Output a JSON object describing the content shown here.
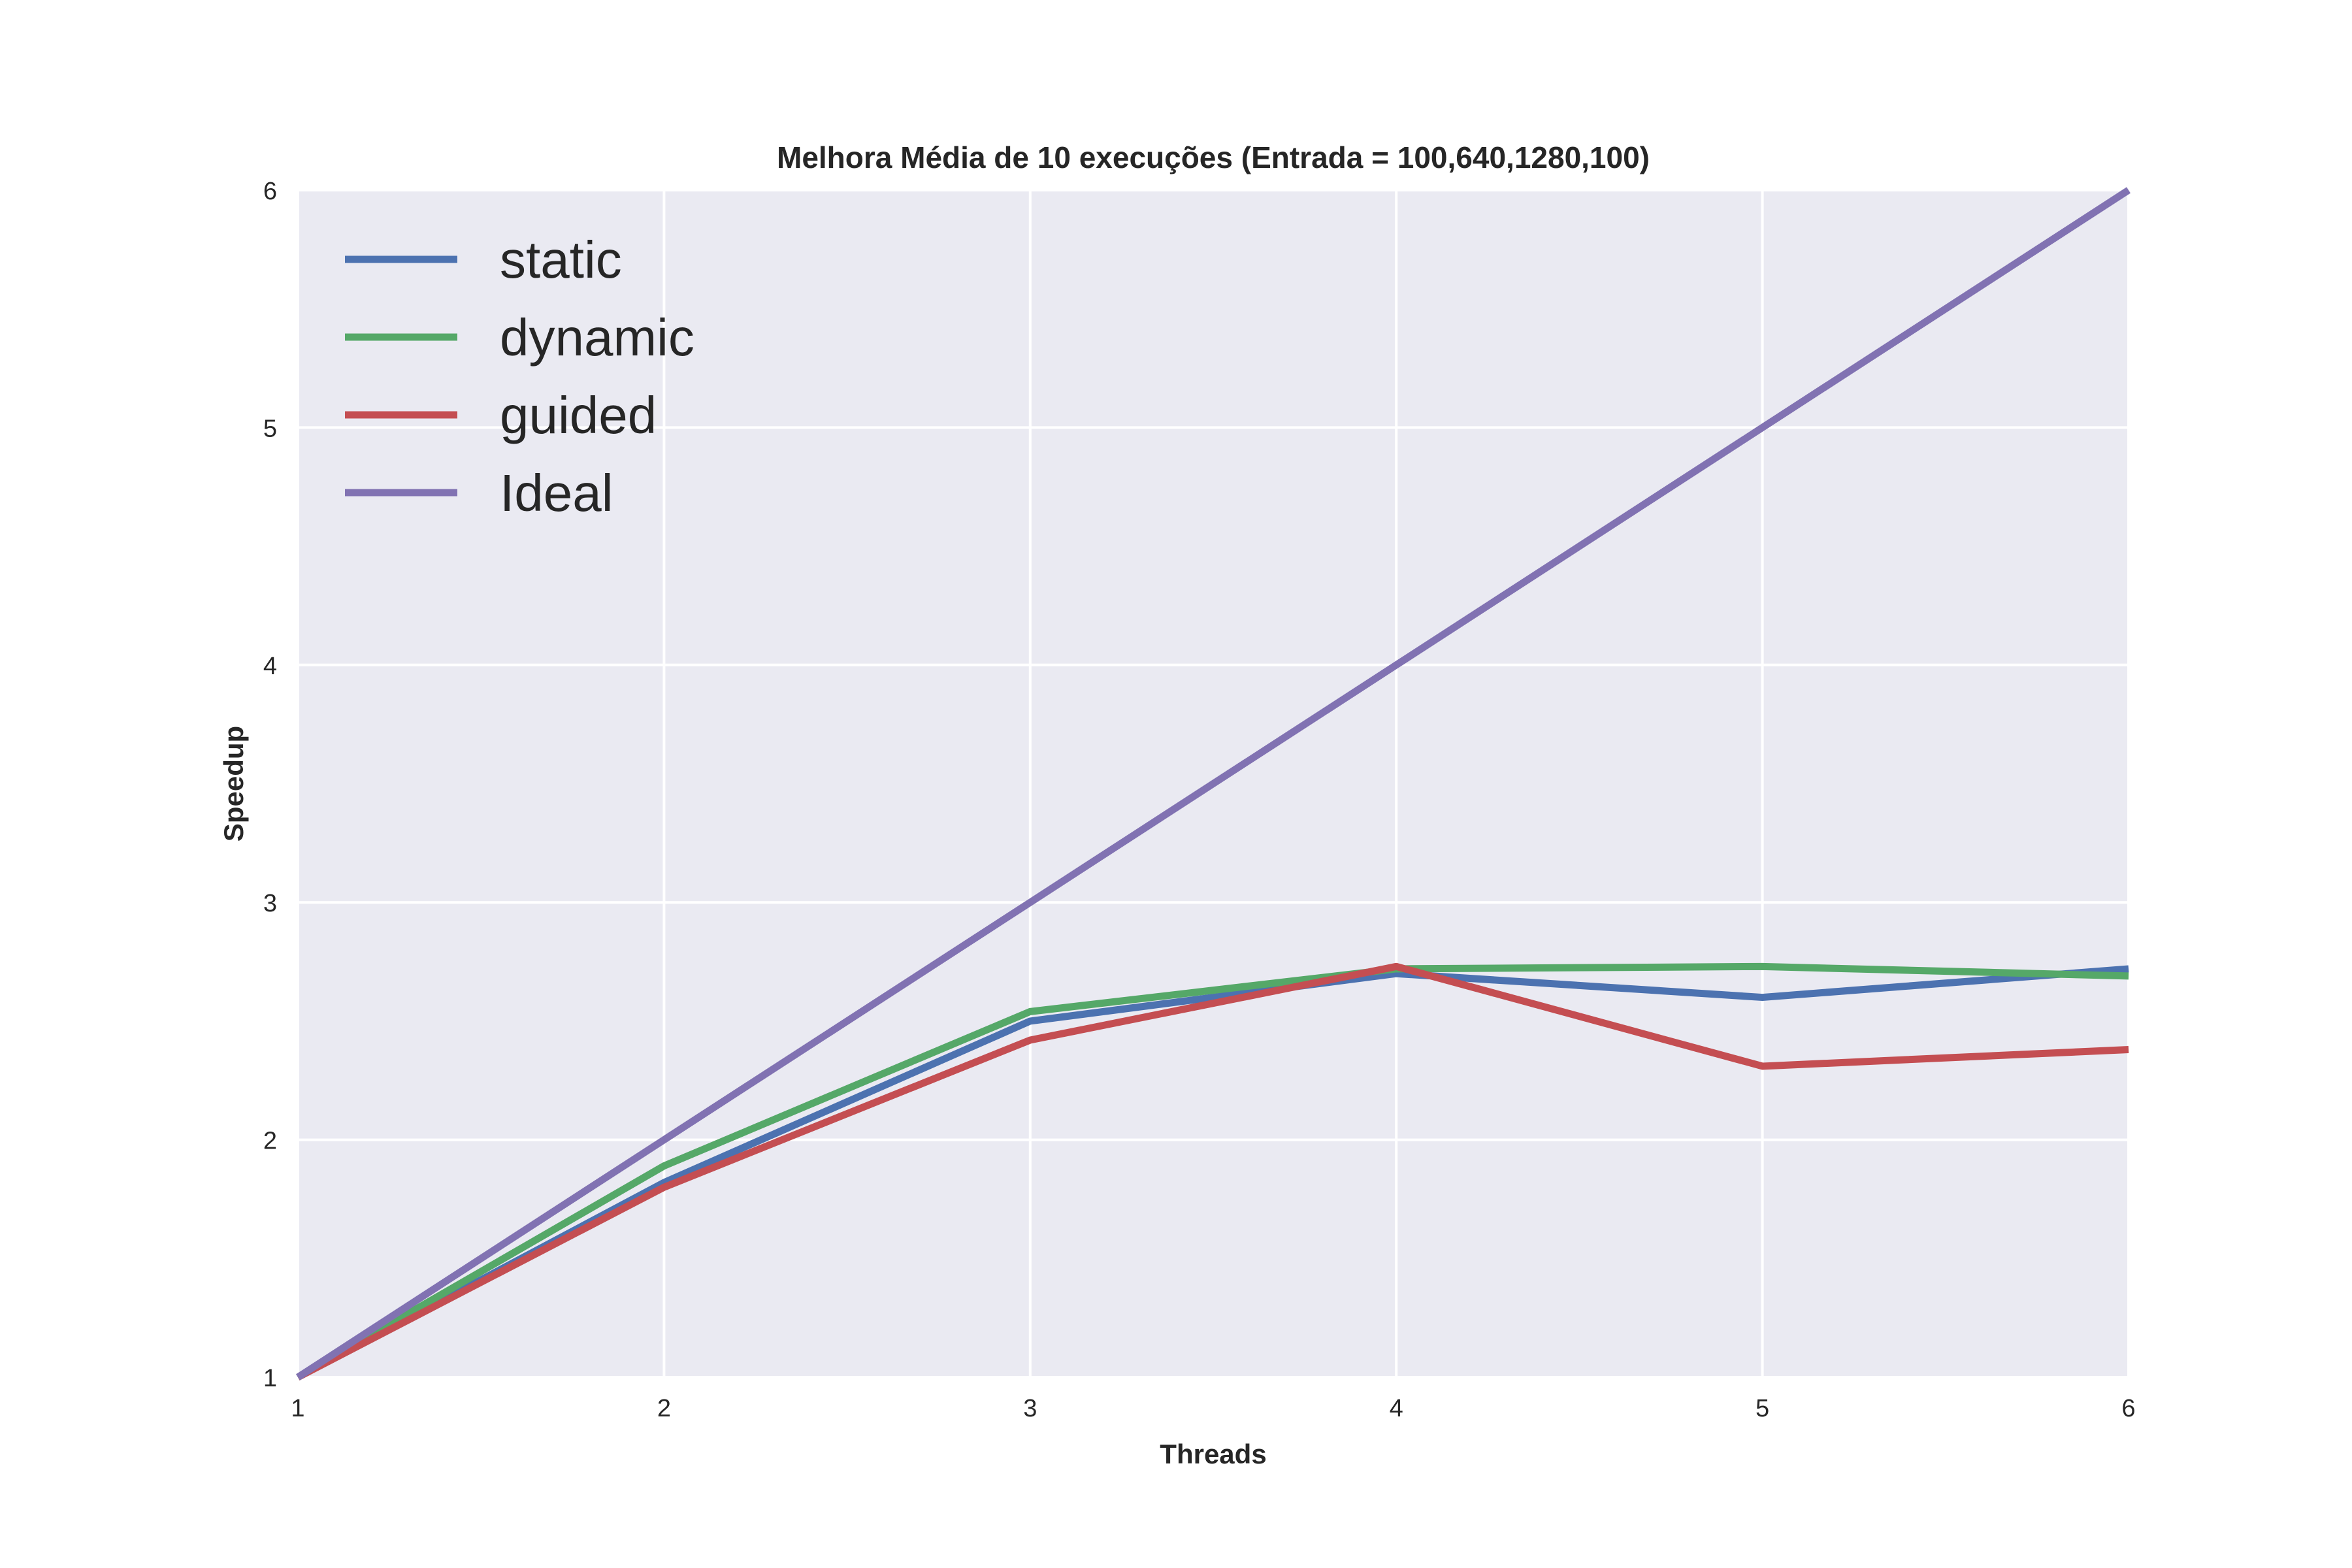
{
  "chart_data": {
    "type": "line",
    "title": "Melhora Média de 10 execuções (Entrada = 100,640,1280,100)",
    "xlabel": "Threads",
    "ylabel": "Speedup",
    "x": [
      1,
      2,
      3,
      4,
      5,
      6
    ],
    "xlim": [
      1,
      6
    ],
    "ylim": [
      1,
      6
    ],
    "xticks": [
      "1",
      "2",
      "3",
      "4",
      "5",
      "6"
    ],
    "yticks": [
      "1",
      "2",
      "3",
      "4",
      "5",
      "6"
    ],
    "grid": true,
    "legend_position": "top-left",
    "background": "#eaeaf2",
    "series": [
      {
        "name": "static",
        "color": "#4c72b0",
        "values": [
          1.0,
          1.82,
          2.5,
          2.7,
          2.6,
          2.72
        ]
      },
      {
        "name": "dynamic",
        "color": "#55a868",
        "values": [
          1.0,
          1.89,
          2.54,
          2.72,
          2.73,
          2.69
        ]
      },
      {
        "name": "guided",
        "color": "#c44e52",
        "values": [
          1.0,
          1.8,
          2.42,
          2.73,
          2.31,
          2.38
        ]
      },
      {
        "name": "Ideal",
        "color": "#8172b2",
        "values": [
          1,
          2,
          3,
          4,
          5,
          6
        ]
      }
    ]
  }
}
